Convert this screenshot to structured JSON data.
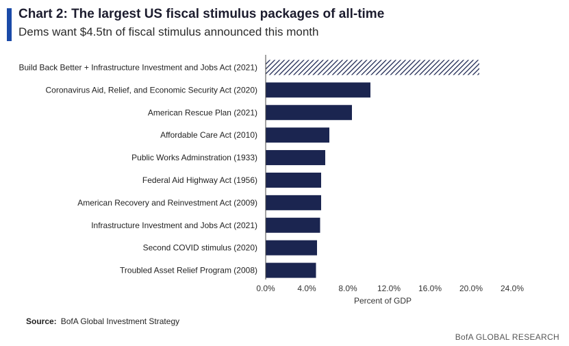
{
  "header": {
    "title": "Chart 2: The largest US fiscal stimulus packages of all-time",
    "subtitle": "Dems want $4.5tn of fiscal stimulus announced this month"
  },
  "footer": {
    "source_label": "Source:",
    "source_text": "BofA Global Investment Strategy",
    "brand": "BofA GLOBAL RESEARCH"
  },
  "colors": {
    "bar": "#1b2550",
    "accent": "#1a4aa8",
    "hatch": "#1b2550"
  },
  "chart_data": {
    "type": "bar",
    "orientation": "horizontal",
    "categories": [
      "Build Back Better + Infrastructure Investment and Jobs Act (2021)",
      "Coronavirus Aid, Relief, and Economic Security Act (2020)",
      "American Rescue Plan (2021)",
      "Affordable Care Act (2010)",
      "Public Works Adminstration (1933)",
      "Federal Aid Highway Act (1956)",
      "American Recovery and Reinvestment Act (2009)",
      "Infrastructure Investment and Jobs Act (2021)",
      "Second COVID stimulus (2020)",
      "Troubled Asset Relief Program (2008)"
    ],
    "values": [
      20.8,
      10.2,
      8.4,
      6.2,
      5.8,
      5.4,
      5.4,
      5.3,
      5.0,
      4.9
    ],
    "hatched": [
      true,
      false,
      false,
      false,
      false,
      false,
      false,
      false,
      false,
      false
    ],
    "xlabel": "Percent of GDP",
    "ylabel": "",
    "xlim": [
      0,
      24
    ],
    "xticks": [
      "0.0%",
      "4.0%",
      "8.0%",
      "12.0%",
      "16.0%",
      "20.0%",
      "24.0%"
    ],
    "grid": false
  }
}
